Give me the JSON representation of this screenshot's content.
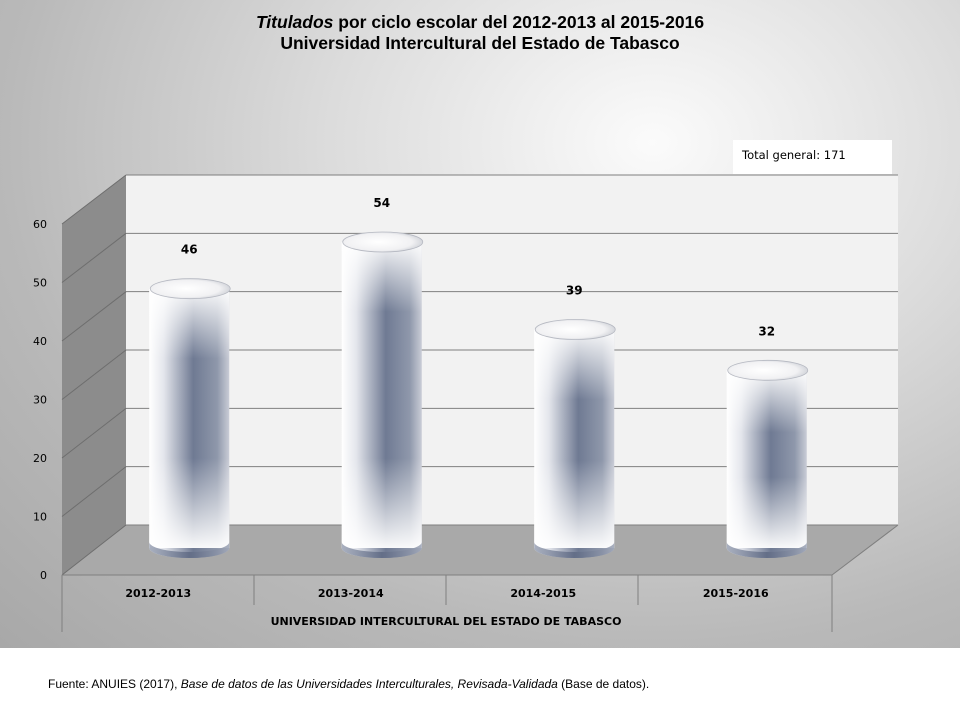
{
  "title": {
    "line1_italic": "Titulados",
    "line1_rest": " por ciclo escolar del 2012-2013 al 2015-2016",
    "line2": "Universidad Intercultural del Estado de Tabasco"
  },
  "total_label": "Total general: 171",
  "source": {
    "prefix": "Fuente: ANUIES (2017), ",
    "italic": "Base de datos de las Universidades  Interculturales, Revisada-Validada",
    "suffix": "  (Base de datos)."
  },
  "chart_data": {
    "type": "bar",
    "title": "Titulados por ciclo escolar del 2012-2013 al 2015-2016",
    "subtitle": "Universidad Intercultural del Estado de Tabasco",
    "categories": [
      "2012-2013",
      "2013-2014",
      "2014-2015",
      "2015-2016"
    ],
    "group_label": "UNIVERSIDAD INTERCULTURAL DEL ESTADO DE TABASCO",
    "values": [
      46,
      54,
      39,
      32
    ],
    "ylim": [
      0,
      60
    ],
    "yticks": [
      "0",
      "10",
      "20",
      "30",
      "40",
      "50",
      "60"
    ],
    "grid": true,
    "style": "3d-cylinder",
    "colors": {
      "bar_dark": "#6f7a93",
      "bar_light": "#ffffff",
      "floor": "#a9a9a9",
      "wall": "#f2f2f2",
      "side": "#8c8c8c"
    }
  }
}
